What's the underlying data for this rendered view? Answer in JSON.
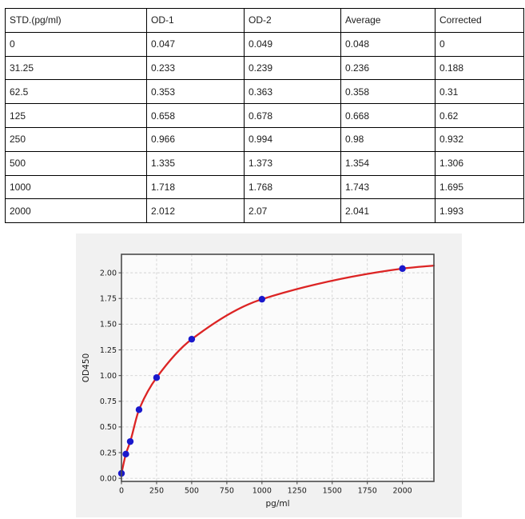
{
  "table": {
    "columns": [
      "STD.(pg/ml)",
      "OD-1",
      "OD-2",
      "Average",
      "Corrected"
    ],
    "rows": [
      [
        "0",
        "0.047",
        "0.049",
        "0.048",
        "0"
      ],
      [
        "31.25",
        "0.233",
        "0.239",
        "0.236",
        "0.188"
      ],
      [
        "62.5",
        "0.353",
        "0.363",
        "0.358",
        "0.31"
      ],
      [
        "125",
        "0.658",
        "0.678",
        "0.668",
        "0.62"
      ],
      [
        "250",
        "0.966",
        "0.994",
        "0.98",
        "0.932"
      ],
      [
        "500",
        "1.335",
        "1.373",
        "1.354",
        "1.306"
      ],
      [
        "1000",
        "1.718",
        "1.768",
        "1.743",
        "1.695"
      ],
      [
        "2000",
        "2.012",
        "2.07",
        "2.041",
        "1.993"
      ]
    ]
  },
  "chart_data": {
    "type": "scatter",
    "title": "",
    "xlabel": "pg/ml",
    "ylabel": "OD450",
    "x": [
      0,
      31.25,
      62.5,
      125,
      250,
      500,
      1000,
      2000
    ],
    "y": [
      0.048,
      0.236,
      0.358,
      0.668,
      0.98,
      1.354,
      1.743,
      2.041
    ],
    "fit_curve_end": {
      "x": 2224,
      "y": 2.07
    },
    "x_ticks": [
      0,
      250,
      500,
      750,
      1000,
      1250,
      1500,
      1750,
      2000
    ],
    "x_tick_labels": [
      "0",
      "250",
      "500",
      "750",
      "1000",
      "1250",
      "1500",
      "1750",
      "2000"
    ],
    "y_ticks": [
      0,
      0.25,
      0.5,
      0.75,
      1,
      1.25,
      1.5,
      1.75,
      2
    ],
    "y_tick_labels": [
      "0.00",
      "0.25",
      "0.50",
      "0.75",
      "1.00",
      "1.25",
      "1.50",
      "1.75",
      "2.00"
    ],
    "xlim": [
      0,
      2224
    ],
    "ylim": [
      -0.03,
      2.18
    ],
    "grid": "dashed",
    "legend": "none",
    "colors": {
      "curve": "#dc2424",
      "marker": "#1a18cc",
      "figure_bg": "#f1f1f1",
      "plot_bg": "#fbfbfb",
      "frame": "#4c4c4c",
      "grid": "#d2d2d2"
    }
  }
}
